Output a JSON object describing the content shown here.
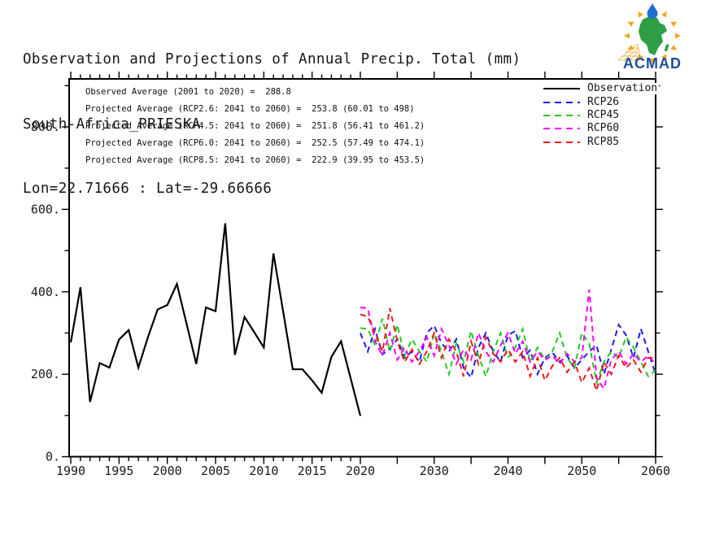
{
  "header": {
    "title_line1": "Observation and Projections of Annual Precip. Total (mm)",
    "title_line2": "South-Africa_PRIESKA",
    "title_line3": "Lon=22.71666 : Lat=-29.66666"
  },
  "logo": {
    "text": "ACMAD",
    "text_color": "#1d4f9c",
    "africa_color": "#2e9e45",
    "drop_color": "#1e6fd0",
    "ray_color": "#f5a623"
  },
  "annotations": {
    "lines": [
      "Observed Average (2001 to 2020) =  288.8",
      "Projected Average (RCP2.6: 2041 to 2060) =  253.8 (60.01 to 498)",
      "Projected Average (RCP4.5: 2041 to 2060) =  251.8 (56.41 to 461.2)",
      "Projected Average (RCP6.0: 2041 to 2060) =  252.5 (57.49 to 474.1)",
      "Projected Average (RCP8.5: 2041 to 2060) =  222.9 (39.95 to 453.5)"
    ]
  },
  "legend": {
    "items": [
      {
        "label": "Observation",
        "color": "#000000",
        "dash": "solid"
      },
      {
        "label": "RCP26",
        "color": "#1a1af0",
        "dash": "dashed"
      },
      {
        "label": "RCP45",
        "color": "#22c822",
        "dash": "dashed"
      },
      {
        "label": "RCP60",
        "color": "#ff00ff",
        "dash": "dashed"
      },
      {
        "label": "RCP85",
        "color": "#f01818",
        "dash": "dashed"
      }
    ]
  },
  "chart_data": {
    "type": "line",
    "title": "Observation and Projections of Annual Precip. Total (mm)",
    "subtitle": "South-Africa_PRIESKA",
    "location": "Lon=22.71666 : Lat=-29.66666",
    "xlabel": "",
    "ylabel": "",
    "ylim": [
      0,
      920
    ],
    "grid": false,
    "legend_position": "top-right",
    "y_ticks": {
      "major_values": [
        0,
        200,
        400,
        600,
        800
      ],
      "major_labels": [
        "0.",
        "200.",
        "400.",
        "600.",
        "800."
      ],
      "minor_values": [
        100,
        300,
        500,
        700,
        900
      ]
    },
    "x_ticks": {
      "labeled_years": [
        1990,
        1995,
        2000,
        2005,
        2010,
        2015,
        2020,
        2030,
        2040,
        2050,
        2060
      ],
      "obs_segment_range": [
        1990,
        2020
      ],
      "obs_minor_step_years": 1,
      "proj_segment_range": [
        2020,
        2060
      ],
      "proj_minor_step_years": 5,
      "axis_break_year": 2020
    },
    "averages": {
      "observed_2001_2020": 288.8,
      "rcp26_2041_2060": {
        "mean": 253.8,
        "min": 60.01,
        "max": 498
      },
      "rcp45_2041_2060": {
        "mean": 251.8,
        "min": 56.41,
        "max": 461.2
      },
      "rcp60_2041_2060": {
        "mean": 252.5,
        "min": 57.49,
        "max": 474.1
      },
      "rcp85_2041_2060": {
        "mean": 222.9,
        "min": 39.95,
        "max": 453.5
      }
    },
    "series": [
      {
        "name": "Observation",
        "color": "#000000",
        "dash": "solid",
        "start_year": 1990,
        "values": [
          277,
          411,
          133,
          227,
          216,
          284,
          307,
          216,
          290,
          357,
          368,
          419,
          322,
          225,
          362,
          353,
          566,
          247,
          339,
          302,
          265,
          493,
          352,
          212,
          212,
          185,
          155,
          242,
          280,
          190,
          99
        ]
      },
      {
        "name": "RCP26",
        "color": "#1a1af0",
        "dash": "dashed",
        "start_year": 2020,
        "values": [
          300,
          255,
          310,
          248,
          262,
          285,
          240,
          255,
          230,
          300,
          318,
          275,
          255,
          285,
          215,
          192,
          265,
          300,
          255,
          230,
          295,
          305,
          240,
          258,
          200,
          240,
          253,
          230,
          245,
          215,
          235,
          255,
          270,
          200,
          260,
          320,
          295,
          240,
          310,
          255,
          200
        ]
      },
      {
        "name": "RCP45",
        "color": "#22c822",
        "dash": "dashed",
        "start_year": 2020,
        "values": [
          312,
          310,
          270,
          335,
          255,
          320,
          245,
          285,
          255,
          230,
          300,
          255,
          200,
          275,
          230,
          305,
          245,
          195,
          255,
          300,
          240,
          265,
          310,
          230,
          265,
          235,
          255,
          300,
          240,
          215,
          300,
          275,
          180,
          230,
          255,
          240,
          290,
          265,
          230,
          195,
          210
        ]
      },
      {
        "name": "RCP60",
        "color": "#ff00ff",
        "dash": "dashed",
        "start_year": 2020,
        "values": [
          362,
          360,
          280,
          245,
          300,
          235,
          265,
          230,
          255,
          290,
          245,
          310,
          270,
          225,
          260,
          235,
          300,
          255,
          230,
          270,
          300,
          250,
          280,
          230,
          255,
          235,
          245,
          225,
          250,
          230,
          240,
          405,
          190,
          165,
          235,
          255,
          225,
          250,
          230,
          245,
          225
        ]
      },
      {
        "name": "RCP85",
        "color": "#f01818",
        "dash": "dashed",
        "start_year": 2020,
        "values": [
          345,
          340,
          300,
          255,
          360,
          280,
          230,
          260,
          225,
          255,
          300,
          240,
          285,
          255,
          195,
          280,
          225,
          290,
          250,
          230,
          260,
          230,
          255,
          195,
          240,
          185,
          220,
          240,
          205,
          230,
          180,
          215,
          160,
          230,
          200,
          245,
          215,
          235,
          205,
          240,
          240
        ]
      }
    ]
  }
}
